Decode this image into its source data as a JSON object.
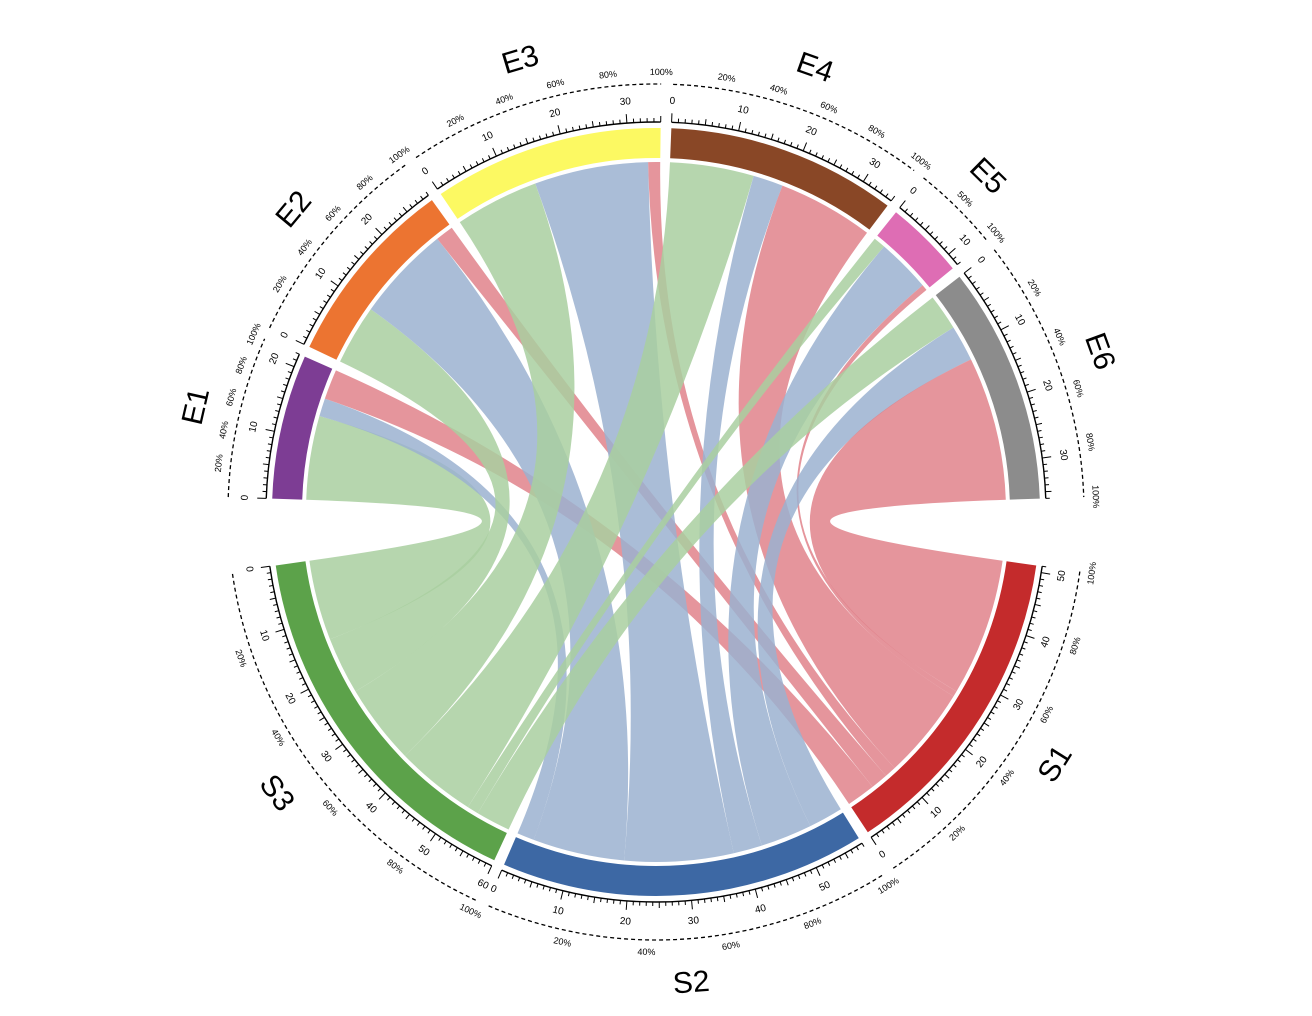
{
  "chart_data": {
    "type": "chord",
    "title": "",
    "sources": [
      {
        "name": "S1",
        "color": "#C42B2C",
        "link_color": "#E0838B"
      },
      {
        "name": "S2",
        "color": "#3D68A4",
        "link_color": "#9BB2D0"
      },
      {
        "name": "S3",
        "color": "#5CA24A",
        "link_color": "#A9CFA0"
      }
    ],
    "targets": [
      {
        "name": "E1",
        "color": "#7D3D94"
      },
      {
        "name": "E2",
        "color": "#EC7431"
      },
      {
        "name": "E3",
        "color": "#FCF962"
      },
      {
        "name": "E4",
        "color": "#894726"
      },
      {
        "name": "E5",
        "color": "#DE6DB4"
      },
      {
        "name": "E6",
        "color": "#8C8C8C"
      }
    ],
    "flows": [
      {
        "from": "S3",
        "to": "E1",
        "value": 14
      },
      {
        "from": "S2",
        "to": "E1",
        "value": 3
      },
      {
        "from": "S1",
        "to": "E1",
        "value": 5
      },
      {
        "from": "S3",
        "to": "E2",
        "value": 10
      },
      {
        "from": "S2",
        "to": "E2",
        "value": 16
      },
      {
        "from": "S1",
        "to": "E2",
        "value": 3
      },
      {
        "from": "S3",
        "to": "E3",
        "value": 14
      },
      {
        "from": "S2",
        "to": "E3",
        "value": 19
      },
      {
        "from": "S1",
        "to": "E3",
        "value": 2
      },
      {
        "from": "S3",
        "to": "E4",
        "value": 14
      },
      {
        "from": "S2",
        "to": "E4",
        "value": 5
      },
      {
        "from": "S1",
        "to": "E4",
        "value": 16
      },
      {
        "from": "S3",
        "to": "E5",
        "value": 2
      },
      {
        "from": "S2",
        "to": "E5",
        "value": 9
      },
      {
        "from": "S1",
        "to": "E5",
        "value": 1
      },
      {
        "from": "S3",
        "to": "E6",
        "value": 6
      },
      {
        "from": "S2",
        "to": "E6",
        "value": 6
      },
      {
        "from": "S1",
        "to": "E6",
        "value": 24
      }
    ],
    "tick_labels": [
      0,
      10,
      20,
      30,
      40,
      50,
      60
    ],
    "percent_labels": [
      "20%",
      "40%",
      "50%",
      "60%",
      "80%",
      "100%"
    ]
  }
}
